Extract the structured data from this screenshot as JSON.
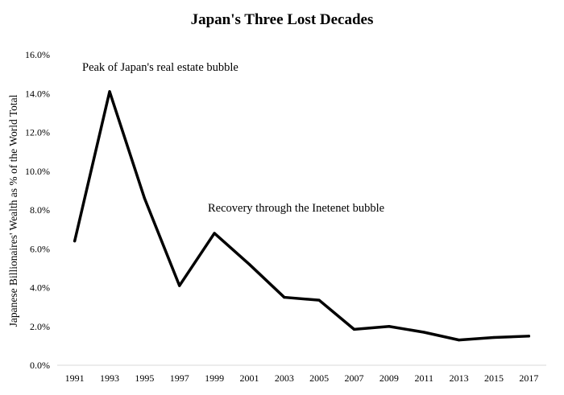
{
  "chart_data": {
    "type": "line",
    "title": "Japan's Three Lost Decades",
    "xlabel": "",
    "ylabel": "Japanese Billionaires' Wealth as % of the World Total",
    "x": [
      1991,
      1993,
      1995,
      1997,
      1999,
      2001,
      2003,
      2005,
      2007,
      2009,
      2011,
      2013,
      2015,
      2017
    ],
    "x_tick_labels": [
      "1991",
      "1993",
      "1995",
      "1997",
      "1999",
      "2001",
      "2003",
      "2005",
      "2007",
      "2009",
      "2011",
      "2013",
      "2015",
      "2017"
    ],
    "y_ticks": [
      0,
      2,
      4,
      6,
      8,
      10,
      12,
      14,
      16
    ],
    "y_tick_labels": [
      "0.0%",
      "2.0%",
      "4.0%",
      "6.0%",
      "8.0%",
      "10.0%",
      "12.0%",
      "14.0%",
      "16.0%"
    ],
    "ylim": [
      0,
      16
    ],
    "series": [
      {
        "values": [
          6.4,
          14.1,
          8.6,
          4.1,
          6.8,
          5.2,
          3.5,
          3.35,
          1.85,
          2.0,
          1.7,
          1.3,
          1.43,
          1.5
        ],
        "color": "#000000"
      }
    ],
    "grid": false,
    "legend": "none",
    "annotations": [
      {
        "text": "Peak of Japan's real estate bubble"
      },
      {
        "text": "Recovery through the Inetenet bubble"
      }
    ]
  }
}
